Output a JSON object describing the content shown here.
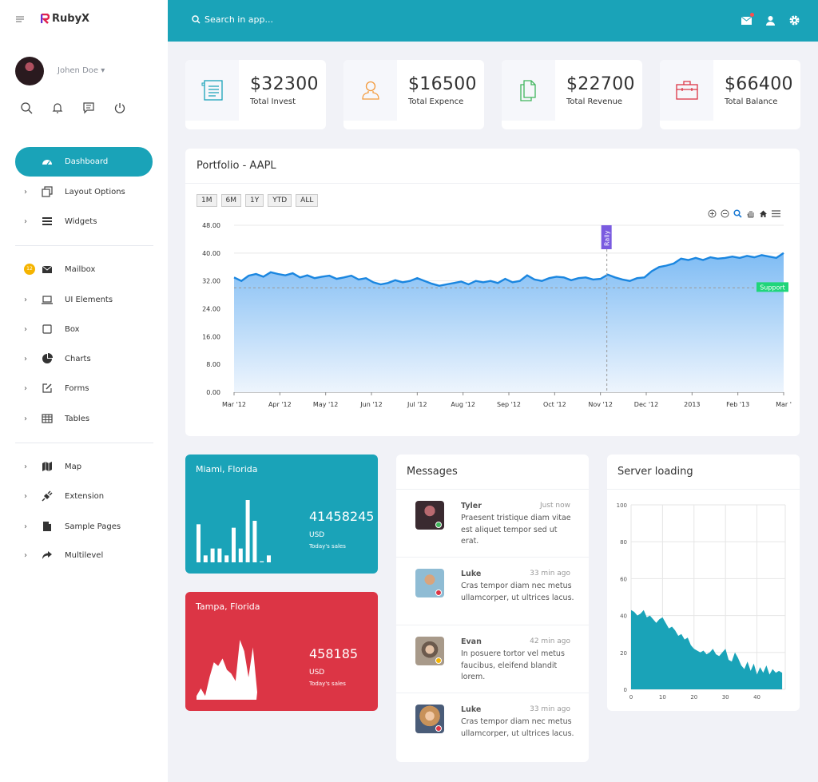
{
  "brand": {
    "name": "RubyX",
    "logo_letter": "R"
  },
  "user": {
    "name": "Johen Doe ▾"
  },
  "user_icons": [
    "search-icon",
    "bell-icon",
    "message-icon",
    "power-icon"
  ],
  "nav": {
    "group1": [
      {
        "label": "Dashboard",
        "icon": "dashboard-icon",
        "active": true
      },
      {
        "label": "Layout Options",
        "icon": "layout-icon"
      },
      {
        "label": "Widgets",
        "icon": "list-icon"
      }
    ],
    "group2": [
      {
        "label": "Mailbox",
        "icon": "mail-icon",
        "badge": "12"
      },
      {
        "label": "UI Elements",
        "icon": "laptop-icon"
      },
      {
        "label": "Box",
        "icon": "square-icon"
      },
      {
        "label": "Charts",
        "icon": "pie-icon"
      },
      {
        "label": "Forms",
        "icon": "edit-icon"
      },
      {
        "label": "Tables",
        "icon": "table-icon"
      }
    ],
    "group3": [
      {
        "label": "Map",
        "icon": "map-icon"
      },
      {
        "label": "Extension",
        "icon": "plug-icon"
      },
      {
        "label": "Sample Pages",
        "icon": "file-icon"
      },
      {
        "label": "Multilevel",
        "icon": "share-icon"
      }
    ]
  },
  "topbar": {
    "search_placeholder": "Search in app..."
  },
  "stats": [
    {
      "value": "$32300",
      "label": "Total Invest",
      "color": "#1aa3b8",
      "icon": "document-icon"
    },
    {
      "value": "$16500",
      "label": "Total Expence",
      "color": "#f39a3b",
      "icon": "user-icon"
    },
    {
      "value": "$22700",
      "label": "Total Revenue",
      "color": "#3fb55b",
      "icon": "copy-icon"
    },
    {
      "value": "$66400",
      "label": "Total Balance",
      "color": "#dc3545",
      "icon": "briefcase-icon"
    }
  ],
  "portfolio": {
    "title": "Portfolio - AAPL",
    "ranges": [
      "1M",
      "6M",
      "1Y",
      "YTD",
      "ALL"
    ],
    "annotations": {
      "rally": "Rally",
      "support": "Support"
    }
  },
  "cities": [
    {
      "name": "Miami, Florida",
      "value": "41458245",
      "unit": "USD",
      "sub": "Today's sales",
      "color": "#1aa3b8"
    },
    {
      "name": "Tampa, Florida",
      "value": "458185",
      "unit": "USD",
      "sub": "Today's sales",
      "color": "#dc3545"
    }
  ],
  "messages": {
    "title": "Messages",
    "items": [
      {
        "name": "Tyler",
        "time": "Just now",
        "text": "Praesent tristique diam vitae est aliquet tempor sed ut erat.",
        "status_color": "#3fb55b",
        "avatar_color": "#3a2a30"
      },
      {
        "name": "Luke",
        "time": "33 min ago",
        "text": "Cras tempor diam nec metus ullamcorper, ut ultrices lacus.",
        "status_color": "#dc3545",
        "avatar_color": "#8fbcd4"
      },
      {
        "name": "Evan",
        "time": "42 min ago",
        "text": "In posuere tortor vel metus faucibus, eleifend blandit lorem.",
        "status_color": "#f5b400",
        "avatar_color": "#9c8a78"
      },
      {
        "name": "Luke",
        "time": "33 min ago",
        "text": "Cras tempor diam nec metus ullamcorper, ut ultrices lacus.",
        "status_color": "#dc3545",
        "avatar_color": "#c8925a"
      }
    ]
  },
  "server": {
    "title": "Server loading"
  },
  "chart_data": [
    {
      "type": "area",
      "title": "Portfolio - AAPL",
      "x_tick_labels": [
        "Mar '12",
        "Apr '12",
        "May '12",
        "Jun '12",
        "Jul '12",
        "Aug '12",
        "Sep '12",
        "Oct '12",
        "Nov '12",
        "Dec '12",
        "2013",
        "Feb '13",
        "Mar '"
      ],
      "y_tick_labels": [
        "0.00",
        "8.00",
        "16.00",
        "24.00",
        "32.00",
        "40.00",
        "48.00"
      ],
      "ylim": [
        0,
        48
      ],
      "series": [
        {
          "values": [
            33.0,
            32.0,
            33.5,
            34.0,
            33.2,
            34.5,
            34.0,
            33.6,
            34.2,
            33.0,
            33.6,
            32.8,
            33.2,
            33.5,
            32.6,
            33.0,
            33.5,
            32.4,
            32.8,
            31.6,
            31.0,
            31.4,
            32.2,
            31.6,
            32.0,
            32.8,
            32.0,
            31.2,
            30.6,
            31.0,
            31.4,
            31.8,
            31.0,
            32.0,
            31.6,
            32.0,
            31.4,
            32.6,
            31.6,
            32.0,
            33.6,
            32.4,
            32.0,
            32.8,
            33.2,
            33.0,
            32.2,
            32.8,
            33.0,
            32.4,
            32.6,
            33.8,
            33.0,
            32.4,
            32.0,
            32.8,
            33.0,
            34.8,
            36.0,
            36.4,
            37.0,
            38.4,
            38.0,
            38.6,
            38.0,
            38.8,
            38.4,
            38.6,
            39.0,
            38.6,
            39.2,
            38.8,
            39.4,
            39.0,
            38.6,
            40.0
          ]
        }
      ],
      "annotations": [
        {
          "label": "Rally",
          "x": "Nov '12"
        },
        {
          "label": "Support",
          "y": 30.0
        }
      ],
      "grid": true
    },
    {
      "type": "bar",
      "title": "",
      "values": [
        11,
        2,
        4,
        4,
        2,
        10,
        4,
        18,
        12,
        0.3,
        2
      ]
    },
    {
      "type": "area",
      "title": "",
      "values": [
        1,
        3,
        1,
        6,
        10,
        9,
        11,
        8,
        7,
        5,
        16,
        13,
        6,
        14,
        2
      ]
    },
    {
      "type": "area",
      "title": "Server loading",
      "x": [
        0,
        1,
        2,
        3,
        4,
        5,
        6,
        7,
        8,
        9,
        10,
        11,
        12,
        13,
        14,
        15,
        16,
        17,
        18,
        19,
        20,
        21,
        22,
        23,
        24,
        25,
        26,
        27,
        28,
        29,
        30,
        31,
        32,
        33,
        34,
        35,
        36,
        37,
        38,
        39,
        40,
        41,
        42,
        43,
        44,
        45,
        46,
        47,
        48
      ],
      "y": [
        43,
        42,
        40,
        41,
        43,
        39,
        40,
        38,
        36,
        38,
        39,
        36,
        33,
        34,
        32,
        29,
        30,
        27,
        28,
        24,
        22,
        21,
        20,
        21,
        19,
        20,
        22,
        19,
        18,
        20,
        22,
        16,
        15,
        20,
        17,
        13,
        11,
        15,
        10,
        14,
        8,
        12,
        9,
        13,
        8,
        11,
        9,
        10,
        9
      ],
      "x_tick_labels": [
        "0",
        "10",
        "20",
        "30",
        "40"
      ],
      "y_tick_labels": [
        "0",
        "20",
        "40",
        "60",
        "80",
        "100"
      ],
      "xlim": [
        0,
        49
      ],
      "ylim": [
        0,
        100
      ],
      "grid": true
    }
  ]
}
